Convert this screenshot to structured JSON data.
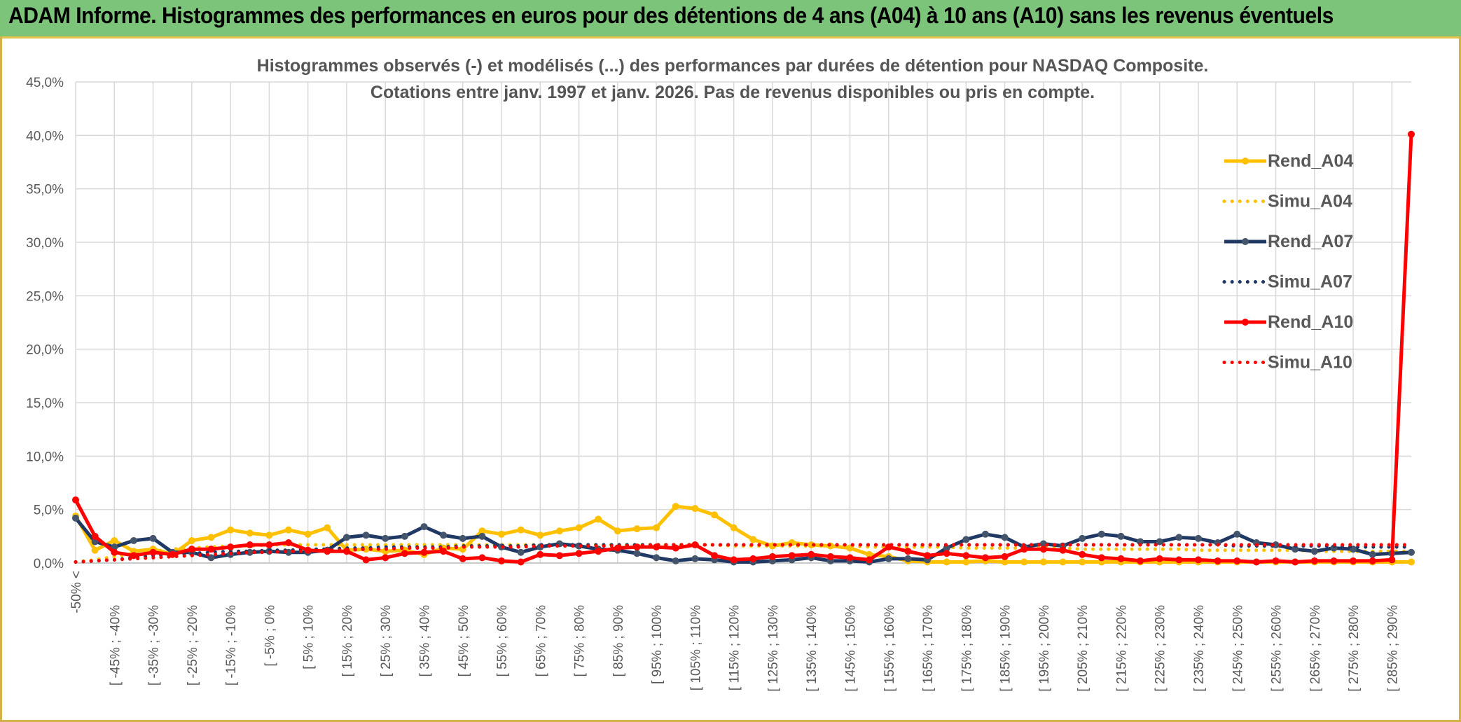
{
  "header": {
    "title": "ADAM Informe. Histogrammes des performances en euros pour des détentions de 4 ans (A04) à 10 ans (A10) sans les revenus éventuels"
  },
  "colors": {
    "banner": "#7cc47a",
    "a04": "#ffc000",
    "a07": "#1f3864",
    "a10": "#ff0000",
    "grid": "#d9d9d9",
    "axis_text": "#595959"
  },
  "chart_data": {
    "type": "line",
    "title": "Histogrammes observés (-) et modélisés (...) des performances par durées de détention pour NASDAQ Composite.",
    "subtitle": "Cotations entre janv. 1997 et janv. 2026. Pas de revenus disponibles ou pris en compte.",
    "xlabel": "",
    "ylabel": "",
    "ylim": [
      0,
      45
    ],
    "yticks": [
      "0,0%",
      "5,0%",
      "10,0%",
      "15,0%",
      "20,0%",
      "25,0%",
      "30,0%",
      "35,0%",
      "40,0%",
      "45,0%"
    ],
    "grid": true,
    "legend_position": "right",
    "x_tick_labels": [
      "-50% <",
      "[ -45% ; -40%",
      "[ -35% ; -30%",
      "[ -25% ; -20%",
      "[ -15% ; -10%",
      "[ -5% ; 0%",
      "[ 5% ; 10%",
      "[ 15% ; 20%",
      "[ 25% ; 30%",
      "[ 35% ; 40%",
      "[ 45% ; 50%",
      "[ 55% ; 60%",
      "[ 65% ; 70%",
      "[ 75% ; 80%",
      "[ 85% ; 90%",
      "[ 95% ; 100%",
      "[ 105% ; 110%",
      "[ 115% ; 120%",
      "[ 125% ; 130%",
      "[ 135% ; 140%",
      "[ 145% ; 150%",
      "[ 155% ; 160%",
      "[ 165% ; 170%",
      "[ 175% ; 180%",
      "[ 185% ; 190%",
      "[ 195% ; 200%",
      "[ 205% ; 210%",
      "[ 215% ; 220%",
      "[ 225% ; 230%",
      "[ 235% ; 240%",
      "[ 245% ; 250%",
      "[ 255% ; 260%",
      "[ 265% ; 270%",
      "[ 275% ; 280%",
      "[ 285% ; 290%"
    ],
    "series": [
      {
        "name": "Rend_A04",
        "style": "solid",
        "color": "#ffc000",
        "values": [
          4.4,
          1.2,
          2.1,
          1.1,
          1.3,
          0.8,
          2.1,
          2.4,
          3.1,
          2.8,
          2.6,
          3.1,
          2.7,
          3.3,
          1.2,
          1.3,
          1.1,
          1.2,
          0.8,
          1.4,
          1.3,
          3.0,
          2.7,
          3.1,
          2.6,
          3.0,
          3.3,
          4.1,
          3.0,
          3.2,
          3.3,
          5.3,
          5.1,
          4.5,
          3.3,
          2.2,
          1.6,
          1.9,
          1.7,
          1.6,
          1.4,
          0.8,
          0.6,
          0.2,
          0.1,
          0.1,
          0.1,
          0.2,
          0.1,
          0.1,
          0.1,
          0.1,
          0.1,
          0.1,
          0.1,
          0.1,
          0.1,
          0.1,
          0.1,
          0.1,
          0.1,
          0.1,
          0.1,
          0.1,
          0.1,
          0.1,
          0.1,
          0.1,
          0.1,
          0.1
        ]
      },
      {
        "name": "Simu_A04",
        "style": "dotted",
        "color": "#ffc000",
        "values": [
          0.1,
          0.3,
          0.6,
          0.9,
          1.1,
          1.3,
          1.4,
          1.5,
          1.6,
          1.6,
          1.7,
          1.7,
          1.7,
          1.7,
          1.7,
          1.7,
          1.7,
          1.7,
          1.7,
          1.7,
          1.7,
          1.7,
          1.7,
          1.7,
          1.7,
          1.7,
          1.7,
          1.7,
          1.7,
          1.7,
          1.7,
          1.7,
          1.7,
          1.7,
          1.6,
          1.6,
          1.6,
          1.6,
          1.6,
          1.6,
          1.6,
          1.5,
          1.5,
          1.5,
          1.5,
          1.5,
          1.4,
          1.4,
          1.4,
          1.4,
          1.4,
          1.4,
          1.3,
          1.3,
          1.3,
          1.3,
          1.3,
          1.3,
          1.2,
          1.2,
          1.2,
          1.2,
          1.2,
          1.2,
          1.1,
          1.1,
          1.1,
          1.1,
          1.1,
          1.1
        ]
      },
      {
        "name": "Rend_A07",
        "style": "solid",
        "color": "#1f3864",
        "values": [
          4.2,
          2.0,
          1.5,
          2.1,
          2.3,
          1.0,
          1.0,
          0.5,
          0.8,
          1.0,
          1.1,
          1.0,
          1.0,
          1.2,
          2.4,
          2.6,
          2.3,
          2.5,
          3.4,
          2.6,
          2.3,
          2.5,
          1.5,
          1.0,
          1.5,
          1.8,
          1.6,
          1.3,
          1.2,
          0.9,
          0.5,
          0.2,
          0.4,
          0.3,
          0.1,
          0.1,
          0.2,
          0.3,
          0.5,
          0.2,
          0.2,
          0.1,
          0.4,
          0.4,
          0.3,
          1.4,
          2.2,
          2.7,
          2.4,
          1.5,
          1.8,
          1.6,
          2.3,
          2.7,
          2.5,
          2.0,
          2.0,
          2.4,
          2.3,
          1.9,
          2.7,
          1.9,
          1.7,
          1.3,
          1.1,
          1.4,
          1.3,
          0.8,
          0.9,
          1.0
        ]
      },
      {
        "name": "Simu_A07",
        "style": "dotted",
        "color": "#1f3864",
        "values": [
          0.1,
          0.2,
          0.3,
          0.5,
          0.7,
          0.8,
          0.9,
          1.0,
          1.1,
          1.1,
          1.2,
          1.2,
          1.3,
          1.3,
          1.4,
          1.4,
          1.5,
          1.5,
          1.5,
          1.5,
          1.6,
          1.6,
          1.6,
          1.6,
          1.7,
          1.7,
          1.7,
          1.7,
          1.7,
          1.7,
          1.7,
          1.7,
          1.7,
          1.7,
          1.7,
          1.7,
          1.7,
          1.7,
          1.7,
          1.7,
          1.7,
          1.7,
          1.7,
          1.7,
          1.7,
          1.7,
          1.7,
          1.7,
          1.7,
          1.7,
          1.7,
          1.7,
          1.7,
          1.7,
          1.7,
          1.7,
          1.7,
          1.7,
          1.7,
          1.7,
          1.6,
          1.6,
          1.6,
          1.6,
          1.6,
          1.6,
          1.5,
          1.5,
          1.5,
          1.5
        ]
      },
      {
        "name": "Rend_A10",
        "style": "solid",
        "color": "#ff0000",
        "values": [
          5.9,
          2.5,
          1.0,
          0.7,
          1.0,
          0.8,
          1.3,
          1.3,
          1.5,
          1.7,
          1.7,
          1.9,
          1.2,
          1.1,
          1.1,
          0.3,
          0.5,
          0.9,
          1.0,
          1.1,
          0.4,
          0.5,
          0.2,
          0.1,
          0.8,
          0.7,
          0.9,
          1.1,
          1.4,
          1.5,
          1.5,
          1.4,
          1.7,
          0.7,
          0.3,
          0.4,
          0.6,
          0.7,
          0.8,
          0.6,
          0.5,
          0.3,
          1.5,
          1.1,
          0.7,
          0.9,
          0.7,
          0.5,
          0.6,
          1.3,
          1.3,
          1.2,
          0.8,
          0.5,
          0.4,
          0.2,
          0.4,
          0.3,
          0.3,
          0.2,
          0.2,
          0.1,
          0.2,
          0.1,
          0.2,
          0.2,
          0.2,
          0.2,
          0.3,
          40.1
        ]
      },
      {
        "name": "Simu_A10",
        "style": "dotted",
        "color": "#ff0000",
        "values": [
          0.1,
          0.2,
          0.3,
          0.4,
          0.5,
          0.6,
          0.7,
          0.8,
          0.9,
          1.0,
          1.0,
          1.1,
          1.1,
          1.2,
          1.2,
          1.3,
          1.3,
          1.4,
          1.4,
          1.4,
          1.5,
          1.5,
          1.5,
          1.5,
          1.6,
          1.6,
          1.6,
          1.6,
          1.6,
          1.6,
          1.7,
          1.7,
          1.7,
          1.7,
          1.7,
          1.7,
          1.7,
          1.7,
          1.7,
          1.7,
          1.7,
          1.7,
          1.7,
          1.7,
          1.7,
          1.7,
          1.7,
          1.7,
          1.7,
          1.7,
          1.7,
          1.7,
          1.7,
          1.7,
          1.7,
          1.7,
          1.7,
          1.7,
          1.7,
          1.7,
          1.7,
          1.7,
          1.7,
          1.7,
          1.7,
          1.7,
          1.7,
          1.7,
          1.7,
          1.7
        ]
      }
    ]
  }
}
